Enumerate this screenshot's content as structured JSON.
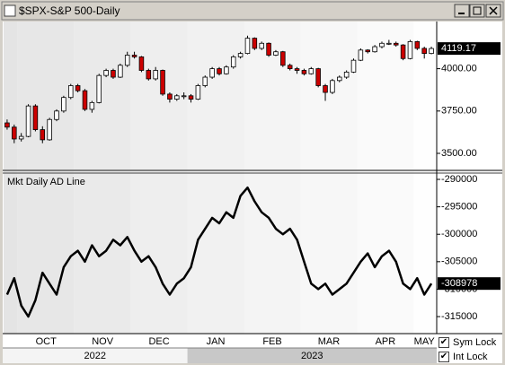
{
  "chart_data": {
    "type": "candlestick",
    "title": "$SPX-S&P 500-Daily",
    "lower_title": "Mkt Daily AD Line",
    "ylim": [
      3410,
      4268
    ],
    "yticks": [
      {
        "value": 3500,
        "label": "3500.00"
      },
      {
        "value": 3750,
        "label": "3750.00"
      },
      {
        "value": 4000,
        "label": "4000.00"
      }
    ],
    "last_value_label": "4119.17",
    "y2lim": [
      -318100,
      -289180
    ],
    "y2ticks": [
      -315000,
      -310000,
      -305000,
      -300000,
      -295000,
      -290000
    ],
    "last_ad_label": "-308978",
    "up_color": "#ffffff",
    "down_color": "#cc0000",
    "line_color": "#000000",
    "years": [
      {
        "label": "2022",
        "months": [
          {
            "label": null,
            "candles": [
              [
                3680,
                3700,
                3640,
                3655
              ],
              [
                3655,
                3670,
                3560,
                3585
              ]
            ],
            "ad": [
              -311000,
              -308000
            ]
          },
          {
            "label": "OCT",
            "candles": [
              [
                3585,
                3620,
                3570,
                3600
              ],
              [
                3600,
                3790,
                3595,
                3780
              ],
              [
                3780,
                3790,
                3630,
                3640
              ],
              [
                3640,
                3660,
                3560,
                3580
              ],
              [
                3580,
                3710,
                3575,
                3700
              ],
              [
                3700,
                3760,
                3690,
                3750
              ],
              [
                3750,
                3840,
                3740,
                3830
              ],
              [
                3830,
                3910,
                3820,
                3900
              ]
            ],
            "ad": [
              -313000,
              -315000,
              -312000,
              -307000,
              -309000,
              -311000,
              -306000,
              -304000
            ]
          },
          {
            "label": "NOV",
            "candles": [
              [
                3900,
                3910,
                3860,
                3870
              ],
              [
                3870,
                3880,
                3750,
                3760
              ],
              [
                3760,
                3810,
                3740,
                3800
              ],
              [
                3800,
                3970,
                3795,
                3960
              ],
              [
                3960,
                4000,
                3950,
                3990
              ],
              [
                3990,
                4000,
                3940,
                3950
              ],
              [
                3950,
                4030,
                3945,
                4020
              ],
              [
                4020,
                4100,
                4010,
                4080
              ]
            ],
            "ad": [
              -303000,
              -305000,
              -302000,
              -304000,
              -303000,
              -301000,
              -302000,
              -300500
            ]
          },
          {
            "label": "DEC",
            "candles": [
              [
                4080,
                4100,
                4060,
                4070
              ],
              [
                4070,
                4075,
                3980,
                3990
              ],
              [
                3990,
                4000,
                3930,
                3940
              ],
              [
                3940,
                4010,
                3930,
                3990
              ],
              [
                3990,
                3995,
                3840,
                3850
              ],
              [
                3850,
                3860,
                3800,
                3820
              ],
              [
                3820,
                3850,
                3810,
                3840
              ],
              [
                3840,
                3860,
                3820,
                3840
              ]
            ],
            "ad": [
              -303000,
              -305000,
              -304000,
              -306000,
              -309000,
              -311000,
              -309000,
              -308000
            ]
          }
        ]
      },
      {
        "label": "2023",
        "months": [
          {
            "label": "JAN",
            "candles": [
              [
                3840,
                3850,
                3800,
                3820
              ],
              [
                3820,
                3910,
                3815,
                3900
              ],
              [
                3900,
                3960,
                3890,
                3950
              ],
              [
                3950,
                4010,
                3940,
                4000
              ],
              [
                4000,
                4010,
                3960,
                3970
              ],
              [
                3970,
                4020,
                3965,
                4010
              ],
              [
                4010,
                4080,
                4000,
                4070
              ],
              [
                4070,
                4100,
                4060,
                4090
              ]
            ],
            "ad": [
              -306000,
              -301000,
              -299000,
              -297000,
              -298000,
              -296000,
              -297000,
              -293000
            ]
          },
          {
            "label": "FEB",
            "candles": [
              [
                4090,
                4195,
                4085,
                4180
              ],
              [
                4180,
                4185,
                4110,
                4120
              ],
              [
                4120,
                4160,
                4110,
                4150
              ],
              [
                4150,
                4155,
                4070,
                4080
              ],
              [
                4080,
                4110,
                4075,
                4100
              ],
              [
                4100,
                4105,
                4010,
                4020
              ],
              [
                4020,
                4030,
                3990,
                4000
              ],
              [
                4000,
                4010,
                3970,
                3990
              ]
            ],
            "ad": [
              -291500,
              -294000,
              -296000,
              -297000,
              -299000,
              -300000,
              -299000,
              -301000
            ]
          },
          {
            "label": "MAR",
            "candles": [
              [
                3990,
                4000,
                3960,
                3970
              ],
              [
                3970,
                4010,
                3965,
                4000
              ],
              [
                4000,
                4005,
                3890,
                3900
              ],
              [
                3900,
                3910,
                3810,
                3860
              ],
              [
                3860,
                3940,
                3850,
                3930
              ],
              [
                3930,
                3960,
                3920,
                3950
              ],
              [
                3950,
                3990,
                3940,
                3980
              ],
              [
                3980,
                4060,
                3975,
                4050
              ]
            ],
            "ad": [
              -305000,
              -309000,
              -310000,
              -309000,
              -311000,
              -310000,
              -309000,
              -307000
            ]
          },
          {
            "label": "APR",
            "candles": [
              [
                4050,
                4120,
                4045,
                4110
              ],
              [
                4110,
                4115,
                4090,
                4100
              ],
              [
                4100,
                4140,
                4095,
                4130
              ],
              [
                4130,
                4160,
                4120,
                4150
              ],
              [
                4150,
                4170,
                4140,
                4150
              ],
              [
                4150,
                4160,
                4130,
                4140
              ],
              [
                4140,
                4145,
                4050,
                4060
              ],
              [
                4060,
                4170,
                4055,
                4160
              ]
            ],
            "ad": [
              -305000,
              -303500,
              -306000,
              -304000,
              -303000,
              -305000,
              -309000,
              -310000
            ]
          },
          {
            "label": "MAY",
            "candles": [
              [
                4160,
                4165,
                4110,
                4120
              ],
              [
                4120,
                4130,
                4060,
                4090
              ],
              [
                4090,
                4130,
                4085,
                4119.17
              ]
            ],
            "ad": [
              -308000,
              -311000,
              -308978
            ]
          }
        ]
      }
    ],
    "checkboxes": [
      {
        "label": "Sym Lock",
        "checked": true
      },
      {
        "label": "Int Lock",
        "checked": true
      }
    ]
  }
}
